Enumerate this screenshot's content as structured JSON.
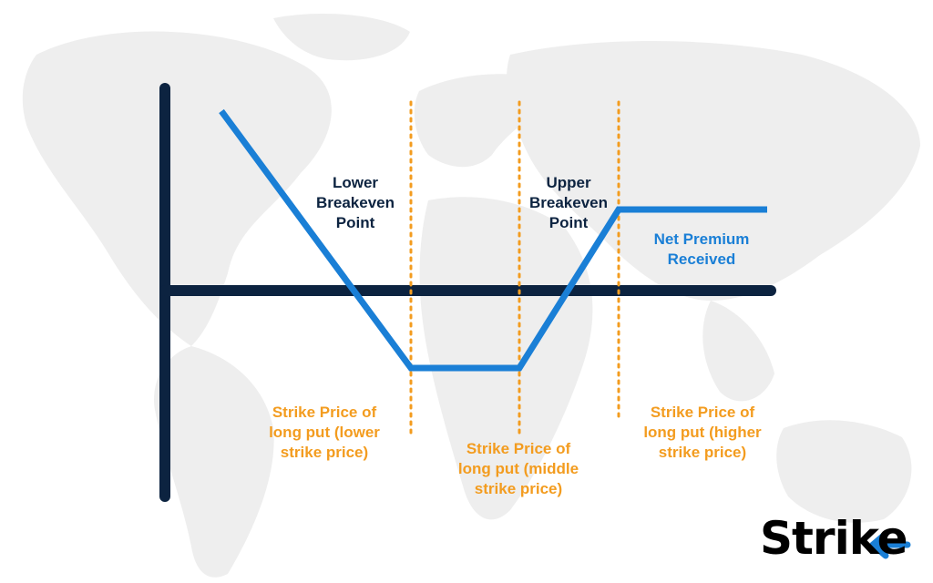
{
  "diagram": {
    "labels": {
      "lower_breakeven": "Lower\nBreakeven\nPoint",
      "upper_breakeven": "Upper\nBreakeven\nPoint",
      "net_premium": "Net Premium\nReceived",
      "strike_lower": "Strike Price of\nlong put (lower\nstrike price)",
      "strike_middle": "Strike Price of\nlong put (middle\nstrike price)",
      "strike_higher": "Strike Price of\nlong put (higher\nstrike price)"
    },
    "colors": {
      "axis": "#0c2340",
      "payoff_line": "#1a7fd6",
      "strike_guides": "#f39c1f",
      "map": "#eeeeee"
    }
  },
  "logo": {
    "text": "Strike",
    "accent_icon": "left-arrow-icon",
    "accent_color": "#1a7fd6"
  }
}
